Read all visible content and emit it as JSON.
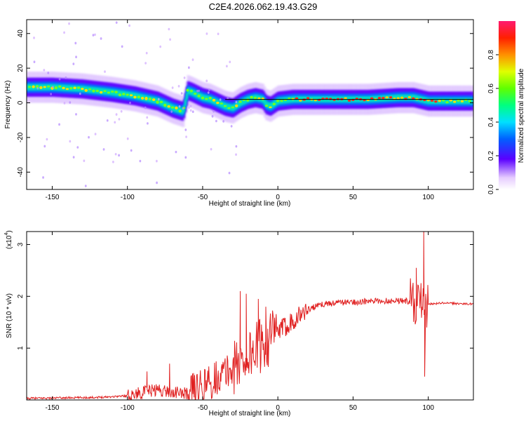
{
  "title": "C2E4.2026.062.19.43.G29",
  "chart_data": [
    {
      "type": "heatmap",
      "xlabel": "Height of straight line (km)",
      "ylabel": "Frequency (Hz)",
      "xlim": [
        -167,
        130
      ],
      "ylim": [
        -50,
        48
      ],
      "xticks": [
        -150,
        -100,
        -50,
        0,
        50,
        100
      ],
      "yticks": [
        -40,
        -20,
        0,
        20,
        40
      ],
      "colorbar": {
        "label": "Normalized spectral amplitude",
        "ticks": [
          "0.0",
          "0.2",
          "0.4",
          "0.6",
          "0.8"
        ],
        "range": [
          0,
          1
        ]
      },
      "ridge": {
        "x": [
          -167,
          -150,
          -130,
          -110,
          -95,
          -80,
          -70,
          -63,
          -60,
          -57,
          -50,
          -45,
          -40,
          -35,
          -30,
          -25,
          -20,
          -15,
          -10,
          -8,
          -5,
          0,
          10,
          30,
          60,
          80,
          90,
          95,
          100,
          110,
          130
        ],
        "y": [
          9,
          9,
          8,
          6,
          4,
          1,
          -3,
          -5,
          7,
          6,
          3,
          2,
          0,
          -2,
          -3,
          0,
          2,
          3,
          2,
          -1,
          -2,
          1,
          2,
          2,
          2,
          3,
          3,
          2,
          1,
          1,
          1
        ]
      },
      "line_y": 2
    },
    {
      "type": "line",
      "xlabel": "Height of straight line (km)",
      "ylabel": "SNR (10 * v/v)",
      "scale_label": "(x10",
      "scale_exp": "4",
      "xlim": [
        -167,
        130
      ],
      "ylim": [
        0,
        3.25
      ],
      "xticks": [
        -150,
        -100,
        -50,
        0,
        50,
        100
      ],
      "yticks": [
        1,
        2,
        3
      ],
      "color": "#e02020",
      "envelope": {
        "x": [
          -167,
          -120,
          -100,
          -90,
          -80,
          -70,
          -60,
          -50,
          -40,
          -30,
          -20,
          -10,
          -5,
          0,
          10,
          20,
          30,
          40,
          60,
          80,
          90,
          95,
          98,
          100,
          110,
          130
        ],
        "y": [
          0.03,
          0.05,
          0.08,
          0.15,
          0.2,
          0.15,
          0.12,
          0.25,
          0.45,
          0.6,
          0.85,
          1.1,
          1.2,
          1.3,
          1.55,
          1.75,
          1.85,
          1.88,
          1.9,
          1.92,
          1.9,
          1.85,
          1.6,
          1.85,
          1.87,
          1.85
        ]
      },
      "spikes": [
        {
          "x": -72,
          "y": 0.7
        },
        {
          "x": -87,
          "y": 0.55
        },
        {
          "x": -25,
          "y": 2.1
        },
        {
          "x": -21,
          "y": 2.05
        },
        {
          "x": -13,
          "y": 1.95
        },
        {
          "x": -8,
          "y": 1.8
        },
        {
          "x": 92,
          "y": 2.55
        },
        {
          "x": 97,
          "y": 3.25
        },
        {
          "x": 97.6,
          "y": 0.45
        }
      ]
    }
  ]
}
